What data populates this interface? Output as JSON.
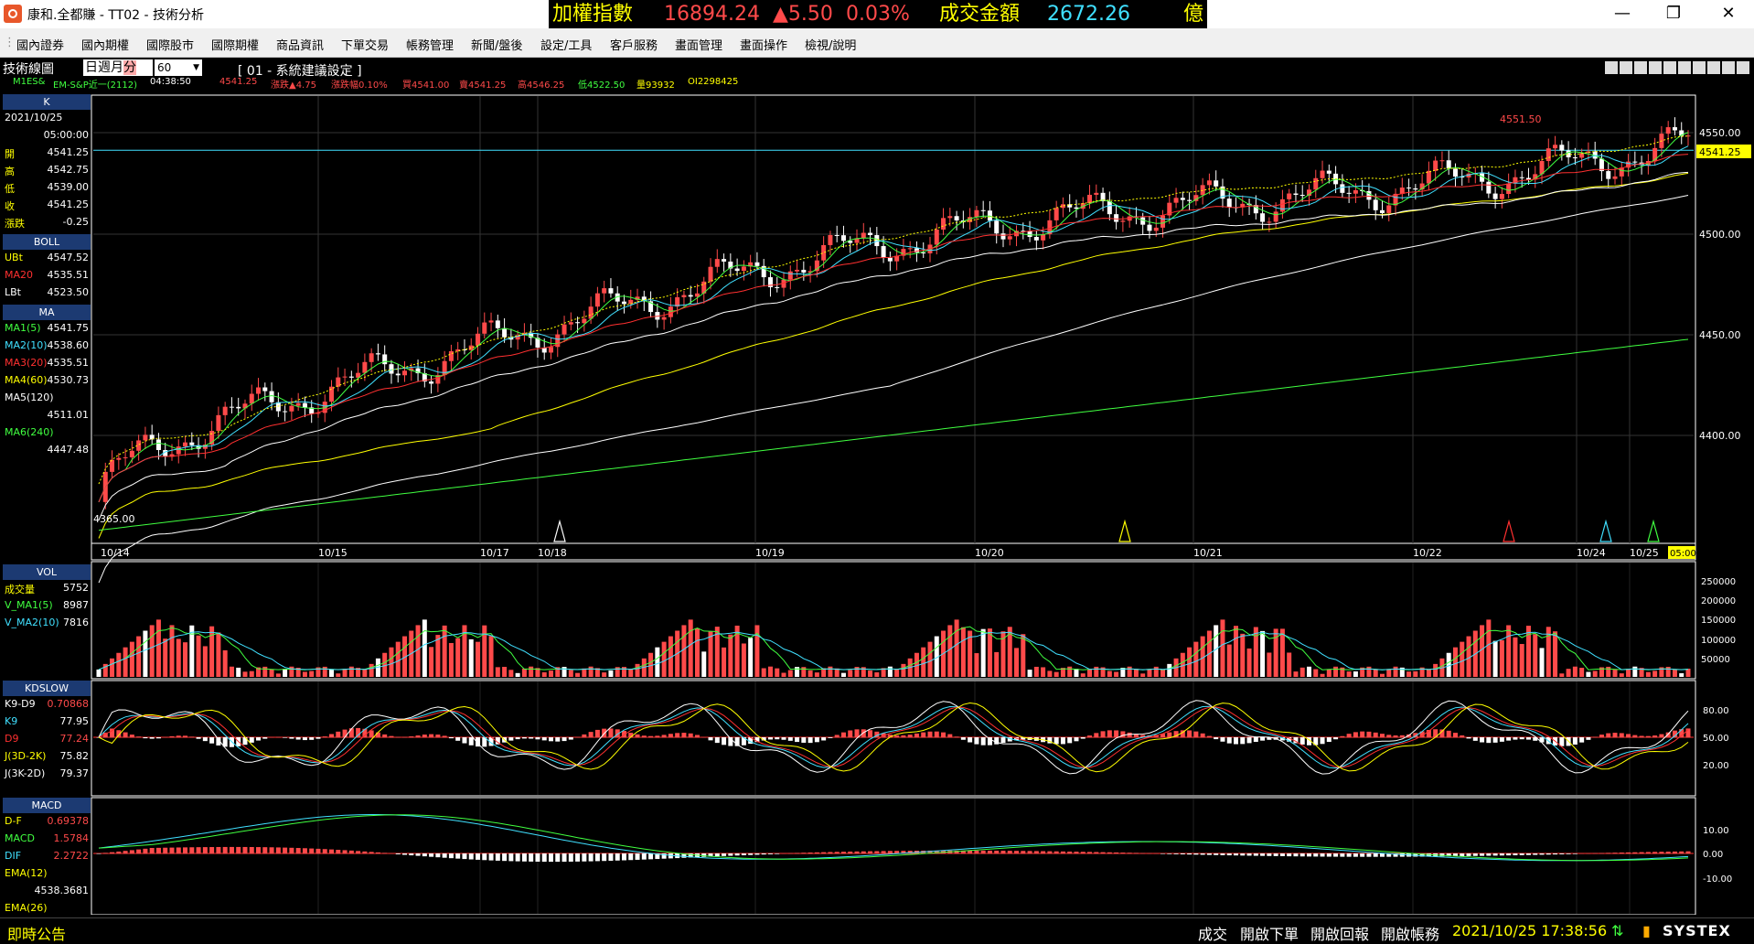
{
  "window": {
    "title": "康和.全都賺 - TT02 - 技術分析",
    "minimize": "—",
    "restore": "❐",
    "close": "✕"
  },
  "ticker": {
    "name": "加權指數",
    "index": "16894.24",
    "change": "▲5.50",
    "change_pct": "0.03%",
    "volume_label": "成交金額",
    "volume": "2672.26",
    "unit": "億"
  },
  "menu": [
    "國內證券",
    "國內期權",
    "國際股市",
    "國際期權",
    "商品資訊",
    "下單交易",
    "帳務管理",
    "新聞/盤後",
    "設定/工具",
    "客戶服務",
    "畫面管理",
    "畫面操作",
    "檢視/說明"
  ],
  "chart_header": {
    "title": "技術線圖",
    "periods": [
      "日",
      "週",
      "月",
      "分"
    ],
    "interval": "60",
    "settings_title": "[ 01 - 系統建議設定 ]",
    "symbol": "M1ES&",
    "symbol_name": "EM-S&P近一(2112)",
    "time": "04:38:50",
    "price": "4541.25",
    "change": "漲跌▲4.75",
    "change_pct": "漲跌幅0.10%",
    "bid": "買4541.00",
    "ask": "賣4541.25",
    "high": "高4546.25",
    "low": "低4522.50",
    "volume": "量93932",
    "oi": "OI2298425"
  },
  "sidebar": {
    "k_title": "K",
    "date": "2021/10/25",
    "time": "05:00:00",
    "ohlc": [
      {
        "label": "開",
        "value": "4541.25"
      },
      {
        "label": "高",
        "value": "4542.75"
      },
      {
        "label": "低",
        "value": "4539.00"
      },
      {
        "label": "收",
        "value": "4541.25"
      },
      {
        "label": "漲跌",
        "value": "-0.25"
      }
    ],
    "boll_title": "BOLL",
    "boll": [
      {
        "label": "UBt",
        "value": "4547.52",
        "color": "#ffff00"
      },
      {
        "label": "MA20",
        "value": "4535.51",
        "color": "#ff3030"
      },
      {
        "label": "LBt",
        "value": "4523.50",
        "color": "#ffffff"
      }
    ],
    "ma_title": "MA",
    "ma": [
      {
        "label": "MA1(5)",
        "value": "4541.75",
        "color": "#40ff40"
      },
      {
        "label": "MA2(10)",
        "value": "4538.60",
        "color": "#40e0ff"
      },
      {
        "label": "MA3(20)",
        "value": "4535.51",
        "color": "#ff3030"
      },
      {
        "label": "MA4(60)",
        "value": "4530.73",
        "color": "#ffff00"
      },
      {
        "label": "MA5(120)",
        "value": "4511.01",
        "color": "#ffffff"
      },
      {
        "label": "MA6(240)",
        "value": "4447.48",
        "color": "#40ff40"
      }
    ],
    "vol_title": "VOL",
    "vol": [
      {
        "label": "成交量",
        "value": "5752",
        "color": "#ffff00"
      },
      {
        "label": "V_MA1(5)",
        "value": "8987",
        "color": "#40ff40"
      },
      {
        "label": "V_MA2(10)",
        "value": "7816",
        "color": "#40e0ff"
      }
    ],
    "kd_title": "KDSLOW",
    "kd": [
      {
        "label": "K9-D9",
        "value": "0.70868",
        "color": "#ffffff"
      },
      {
        "label": "K9",
        "value": "77.95",
        "color": "#40e0ff"
      },
      {
        "label": "D9",
        "value": "77.24",
        "color": "#ff3030"
      },
      {
        "label": "J(3D-2K)",
        "value": "75.82",
        "color": "#ffff00"
      },
      {
        "label": "J(3K-2D)",
        "value": "79.37",
        "color": "#ffffff"
      }
    ],
    "macd_title": "MACD",
    "macd": [
      {
        "label": "D-F",
        "value": "0.69378",
        "color": "#ff3030"
      },
      {
        "label": "MACD",
        "value": "1.5784",
        "color": "#40ff40"
      },
      {
        "label": "DIF",
        "value": "2.2722",
        "color": "#40e0ff"
      },
      {
        "label": "EMA(12)",
        "value": "",
        "color": "#ffff00"
      },
      {
        "label": "",
        "value": "4538.3681",
        "color": "#ffffff"
      },
      {
        "label": "EMA(26)",
        "value": "",
        "color": "#ffff00"
      }
    ]
  },
  "price_axis": {
    "ticks": [
      "4550.00",
      "4500.00",
      "4450.00",
      "4400.00"
    ],
    "current": "4541.25",
    "high_label": "4551.50",
    "low_label": "4365.00",
    "ref_line": 4541.25
  },
  "time_axis": {
    "labels": [
      "10/14",
      "10/15",
      "10/17",
      "10/18",
      "10/19",
      "10/20",
      "10/21",
      "10/22",
      "10/24",
      "10/25"
    ],
    "current_time": "05:00"
  },
  "vol_axis": {
    "ticks": [
      "250000",
      "200000",
      "150000",
      "100000",
      "50000"
    ]
  },
  "kd_axis": {
    "ticks": [
      "80.00",
      "50.00",
      "20.00"
    ]
  },
  "macd_axis": {
    "ticks": [
      "10.00",
      "0.00",
      "-10.00"
    ]
  },
  "status": {
    "notice": "即時公告",
    "trade": "成交",
    "open_order": "開啟下單",
    "open_report": "開啟回報",
    "open_account": "開啟帳務",
    "datetime": "2021/10/25 17:38:56",
    "brand": "SYSTEX"
  },
  "colors": {
    "up": "#ff4a4a",
    "down": "#ffffff",
    "ma5": "#40ff40",
    "ma10": "#40e0ff",
    "ma20": "#ff3030",
    "ma60": "#ffff00",
    "ma120": "#ffffff",
    "ma240": "#40ff40",
    "accent": "#1c3a72"
  }
}
